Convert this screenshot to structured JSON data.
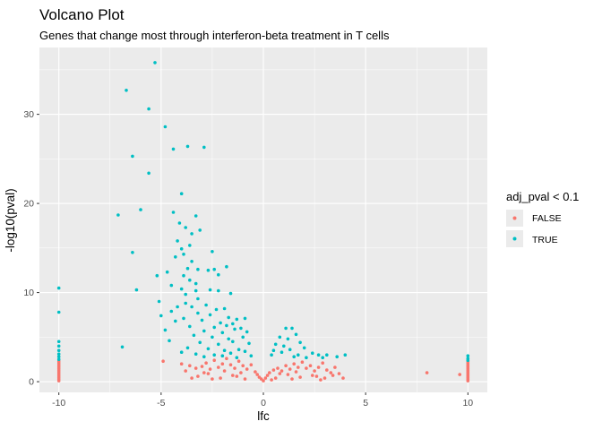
{
  "chart_data": {
    "type": "scatter",
    "title": "Volcano Plot",
    "subtitle": "Genes that change most through interferon-beta treatment in T cells",
    "xlabel": "lfc",
    "ylabel": "-log10(pval)",
    "xlim": [
      -10.95,
      10.95
    ],
    "ylim": [
      -1.2,
      37.5
    ],
    "xticks": [
      -10,
      -5,
      0,
      5,
      10
    ],
    "yticks": [
      0,
      10,
      20,
      30
    ],
    "grid": true,
    "legend": {
      "title": "adj_pval < 0.1",
      "position": "right",
      "entries": [
        {
          "label": "FALSE",
          "color": "#F8766D"
        },
        {
          "label": "TRUE",
          "color": "#00BFC4"
        }
      ]
    },
    "series": [
      {
        "name": "FALSE",
        "color": "#F8766D",
        "points": [
          [
            -10,
            0.1
          ],
          [
            -10,
            0.3
          ],
          [
            -10,
            0.5
          ],
          [
            -10,
            0.7
          ],
          [
            -10,
            0.9
          ],
          [
            -10,
            1.1
          ],
          [
            -10,
            1.3
          ],
          [
            -10,
            1.5
          ],
          [
            -10,
            1.7
          ],
          [
            -10,
            1.9
          ],
          [
            -10,
            2.1
          ],
          [
            -10,
            2.3
          ],
          [
            10,
            0.1
          ],
          [
            10,
            0.3
          ],
          [
            10,
            0.5
          ],
          [
            10,
            0.7
          ],
          [
            10,
            0.9
          ],
          [
            10,
            1.1
          ],
          [
            10,
            1.3
          ],
          [
            10,
            1.5
          ],
          [
            10,
            1.7
          ],
          [
            10,
            1.9
          ],
          [
            10,
            2.1
          ],
          [
            10,
            2.3
          ],
          [
            8.0,
            1.0
          ],
          [
            9.6,
            0.8
          ],
          [
            -4.9,
            2.3
          ],
          [
            -4.0,
            2.0
          ],
          [
            -3.6,
            1.8
          ],
          [
            -3.3,
            1.5
          ],
          [
            -3.0,
            1.7
          ],
          [
            -2.8,
            2.1
          ],
          [
            -2.6,
            1.4
          ],
          [
            -2.4,
            2.4
          ],
          [
            -2.2,
            1.6
          ],
          [
            -2.0,
            2.0
          ],
          [
            -1.8,
            2.6
          ],
          [
            -1.6,
            1.9
          ],
          [
            -1.4,
            1.5
          ],
          [
            -1.2,
            2.3
          ],
          [
            -1.0,
            1.8
          ],
          [
            -0.8,
            1.4
          ],
          [
            -0.6,
            1.9
          ],
          [
            -0.4,
            1.1
          ],
          [
            -0.3,
            0.8
          ],
          [
            -0.2,
            0.5
          ],
          [
            -0.1,
            0.3
          ],
          [
            0.0,
            0.1
          ],
          [
            0.1,
            0.4
          ],
          [
            0.2,
            0.7
          ],
          [
            0.3,
            1.0
          ],
          [
            0.5,
            1.3
          ],
          [
            0.7,
            1.5
          ],
          [
            0.9,
            1.2
          ],
          [
            1.1,
            1.8
          ],
          [
            1.3,
            1.4
          ],
          [
            1.5,
            2.0
          ],
          [
            1.7,
            1.6
          ],
          [
            1.9,
            2.2
          ],
          [
            2.1,
            1.5
          ],
          [
            2.3,
            1.8
          ],
          [
            2.5,
            1.2
          ],
          [
            2.7,
            1.6
          ],
          [
            2.9,
            2.1
          ],
          [
            3.1,
            1.3
          ],
          [
            3.3,
            1.0
          ],
          [
            3.5,
            1.6
          ],
          [
            3.7,
            0.9
          ],
          [
            -3.2,
            0.6
          ],
          [
            -2.7,
            0.9
          ],
          [
            -2.1,
            0.4
          ],
          [
            -1.5,
            0.7
          ],
          [
            -0.9,
            0.3
          ],
          [
            0.6,
            0.4
          ],
          [
            1.2,
            0.8
          ],
          [
            1.8,
            0.5
          ],
          [
            2.4,
            0.7
          ],
          [
            3.0,
            0.4
          ],
          [
            -3.8,
            1.2
          ],
          [
            -2.9,
            1.0
          ],
          [
            -1.9,
            1.2
          ],
          [
            -1.1,
            1.0
          ],
          [
            0.8,
            0.9
          ],
          [
            1.6,
            1.1
          ],
          [
            2.6,
            0.6
          ],
          [
            3.4,
            0.7
          ],
          [
            -3.5,
            0.4
          ],
          [
            -2.5,
            0.3
          ],
          [
            -1.3,
            0.6
          ],
          [
            0.4,
            0.2
          ],
          [
            1.4,
            0.3
          ],
          [
            2.8,
            0.2
          ],
          [
            3.9,
            0.4
          ]
        ]
      },
      {
        "name": "TRUE",
        "color": "#00BFC4",
        "points": [
          [
            -10,
            10.5
          ],
          [
            -10,
            7.8
          ],
          [
            -10,
            4.5
          ],
          [
            -10,
            4.0
          ],
          [
            -10,
            3.5
          ],
          [
            -10,
            3.1
          ],
          [
            -10,
            2.8
          ],
          [
            -10,
            2.5
          ],
          [
            10,
            2.9
          ],
          [
            10,
            2.6
          ],
          [
            10,
            2.4
          ],
          [
            -5.3,
            35.8
          ],
          [
            -6.7,
            32.7
          ],
          [
            -5.6,
            30.6
          ],
          [
            -4.8,
            28.6
          ],
          [
            -3.7,
            26.4
          ],
          [
            -2.9,
            26.3
          ],
          [
            -4.4,
            26.1
          ],
          [
            -6.4,
            25.3
          ],
          [
            -5.6,
            23.4
          ],
          [
            -4.0,
            21.1
          ],
          [
            -6.0,
            19.3
          ],
          [
            -4.4,
            19.0
          ],
          [
            -7.1,
            18.7
          ],
          [
            -3.3,
            18.6
          ],
          [
            -4.1,
            17.8
          ],
          [
            -3.8,
            17.3
          ],
          [
            -3.1,
            17.0
          ],
          [
            -3.5,
            16.6
          ],
          [
            -4.2,
            15.8
          ],
          [
            -3.6,
            15.3
          ],
          [
            -4.0,
            14.9
          ],
          [
            -6.4,
            14.5
          ],
          [
            -3.9,
            14.3
          ],
          [
            -2.5,
            14.6
          ],
          [
            -4.3,
            14.0
          ],
          [
            -3.5,
            13.5
          ],
          [
            -3.2,
            12.6
          ],
          [
            -2.7,
            12.5
          ],
          [
            -3.7,
            12.7
          ],
          [
            -1.8,
            12.9
          ],
          [
            -4.7,
            12.3
          ],
          [
            -2.4,
            12.6
          ],
          [
            -3.9,
            11.9
          ],
          [
            -2.2,
            12.0
          ],
          [
            -5.2,
            11.9
          ],
          [
            -3.6,
            11.4
          ],
          [
            -3.3,
            11.0
          ],
          [
            -4.5,
            10.8
          ],
          [
            -4.0,
            10.4
          ],
          [
            -6.2,
            10.3
          ],
          [
            -3.3,
            10.2
          ],
          [
            -2.6,
            10.3
          ],
          [
            -3.8,
            9.8
          ],
          [
            -2.2,
            10.2
          ],
          [
            -1.6,
            9.9
          ],
          [
            -3.2,
            9.3
          ],
          [
            -5.1,
            9.0
          ],
          [
            -3.8,
            8.8
          ],
          [
            -4.2,
            8.4
          ],
          [
            -3.5,
            8.4
          ],
          [
            -2.8,
            8.6
          ],
          [
            -2.3,
            8.1
          ],
          [
            -4.5,
            7.9
          ],
          [
            -3.2,
            7.7
          ],
          [
            -1.9,
            8.2
          ],
          [
            -5.0,
            7.4
          ],
          [
            -3.9,
            7.1
          ],
          [
            -2.6,
            7.5
          ],
          [
            -1.7,
            7.2
          ],
          [
            -1.3,
            7.0
          ],
          [
            -4.3,
            6.8
          ],
          [
            -3.0,
            6.9
          ],
          [
            -2.1,
            6.6
          ],
          [
            -1.5,
            6.5
          ],
          [
            -0.9,
            7.1
          ],
          [
            -3.6,
            6.2
          ],
          [
            -2.4,
            6.1
          ],
          [
            -1.8,
            6.3
          ],
          [
            -1.1,
            6.0
          ],
          [
            -4.8,
            5.8
          ],
          [
            -2.9,
            5.7
          ],
          [
            -2.0,
            5.5
          ],
          [
            -1.4,
            5.9
          ],
          [
            -0.8,
            5.6
          ],
          [
            -3.4,
            5.2
          ],
          [
            -2.5,
            5.0
          ],
          [
            -1.7,
            4.8
          ],
          [
            -1.0,
            5.0
          ],
          [
            -4.6,
            4.6
          ],
          [
            -3.1,
            4.4
          ],
          [
            -2.2,
            4.2
          ],
          [
            -1.5,
            4.5
          ],
          [
            -0.7,
            4.3
          ],
          [
            -3.7,
            3.8
          ],
          [
            -2.7,
            3.7
          ],
          [
            -1.9,
            3.5
          ],
          [
            -1.2,
            3.6
          ],
          [
            -6.9,
            3.9
          ],
          [
            -4.0,
            3.3
          ],
          [
            -3.3,
            3.1
          ],
          [
            -2.4,
            3.0
          ],
          [
            -1.6,
            3.2
          ],
          [
            -0.9,
            3.4
          ],
          [
            -2.9,
            2.8
          ],
          [
            -2.0,
            2.9
          ],
          [
            -1.3,
            2.7
          ],
          [
            -0.6,
            2.9
          ],
          [
            1.1,
            6.0
          ],
          [
            1.4,
            6.0
          ],
          [
            0.8,
            5.0
          ],
          [
            1.2,
            4.8
          ],
          [
            1.6,
            5.3
          ],
          [
            0.6,
            4.2
          ],
          [
            1.0,
            4.0
          ],
          [
            1.8,
            4.4
          ],
          [
            0.5,
            3.5
          ],
          [
            0.9,
            3.3
          ],
          [
            1.3,
            3.6
          ],
          [
            2.0,
            3.8
          ],
          [
            2.4,
            3.2
          ],
          [
            1.7,
            3.0
          ],
          [
            2.7,
            3.0
          ],
          [
            3.1,
            3.0
          ],
          [
            3.6,
            2.8
          ],
          [
            4.0,
            3.0
          ],
          [
            0.4,
            3.0
          ],
          [
            1.5,
            2.8
          ],
          [
            2.1,
            2.7
          ],
          [
            2.9,
            2.7
          ]
        ]
      }
    ]
  }
}
